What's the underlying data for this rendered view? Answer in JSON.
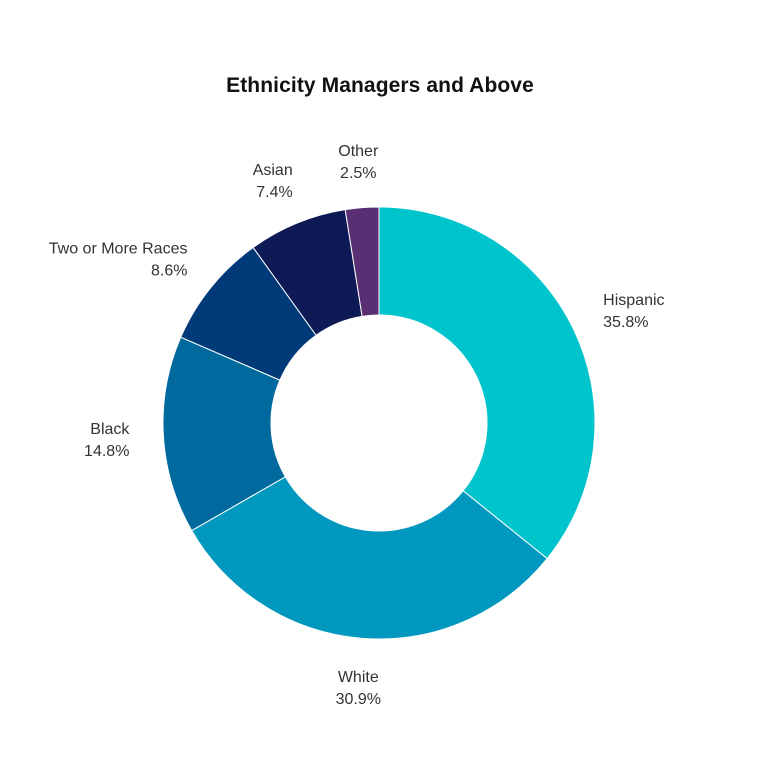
{
  "chart_data": {
    "type": "pie",
    "variant": "donut",
    "title": "Ethnicity Managers and Above",
    "slices": [
      {
        "label": "Hispanic",
        "value": 35.8,
        "value_label": "35.8%",
        "color": "#00C4CC"
      },
      {
        "label": "White",
        "value": 30.9,
        "value_label": "30.9%",
        "color": "#0098BE"
      },
      {
        "label": "Black",
        "value": 14.8,
        "value_label": "14.8%",
        "color": "#006A9E"
      },
      {
        "label": "Two or More Races",
        "value": 8.6,
        "value_label": "8.6%",
        "color": "#003A78"
      },
      {
        "label": "Asian",
        "value": 7.4,
        "value_label": "7.4%",
        "color": "#0D1A56"
      },
      {
        "label": "Other",
        "value": 2.5,
        "value_label": "2.5%",
        "color": "#5A2E72"
      }
    ],
    "start_angle": "top",
    "direction": "clockwise",
    "xlabel": "",
    "ylabel": ""
  }
}
